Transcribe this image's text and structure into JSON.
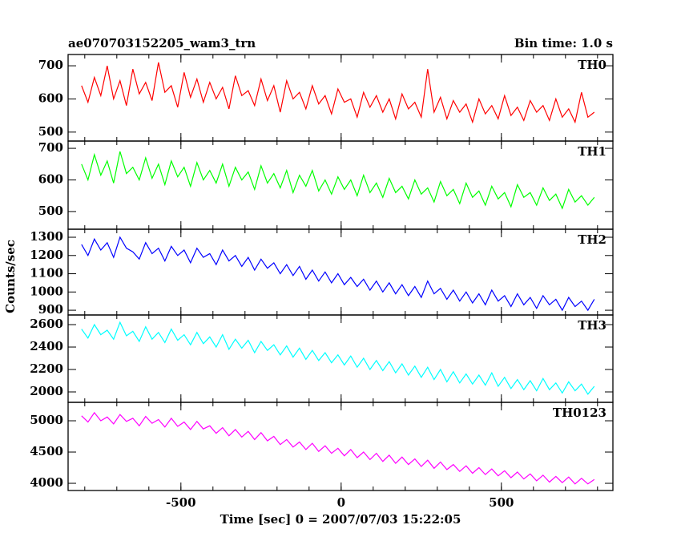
{
  "chart_data": {
    "type": "line",
    "title": "ae070703152205_wam3_trn",
    "subtitle": "Bin time: 1.0 s",
    "y_label": "Counts/sec",
    "x_label": "Time [sec] 0 = 2007/07/03 15:22:05",
    "xlim": [
      -852,
      848
    ],
    "xticks": [
      -500,
      0,
      500
    ],
    "xminorticks": [
      -800,
      -700,
      -600,
      -500,
      -400,
      -300,
      -200,
      -100,
      0,
      100,
      200,
      300,
      400,
      500,
      600,
      700,
      800
    ],
    "x": [
      -810,
      -790,
      -770,
      -750,
      -730,
      -710,
      -690,
      -670,
      -650,
      -630,
      -610,
      -590,
      -570,
      -550,
      -530,
      -510,
      -490,
      -470,
      -450,
      -430,
      -410,
      -390,
      -370,
      -350,
      -330,
      -310,
      -290,
      -270,
      -250,
      -230,
      -210,
      -190,
      -170,
      -150,
      -130,
      -110,
      -90,
      -70,
      -50,
      -30,
      -10,
      10,
      30,
      50,
      70,
      90,
      110,
      130,
      150,
      170,
      190,
      210,
      230,
      250,
      270,
      290,
      310,
      330,
      350,
      370,
      390,
      410,
      430,
      450,
      470,
      490,
      510,
      530,
      550,
      570,
      590,
      610,
      630,
      650,
      670,
      690,
      710,
      730,
      750,
      770,
      790
    ],
    "series": [
      {
        "name": "TH0",
        "color": "#ff0000",
        "ylim": [
          473,
          734
        ],
        "yticks": [
          500,
          600,
          700
        ],
        "values": [
          640,
          590,
          665,
          610,
          700,
          600,
          655,
          580,
          690,
          615,
          650,
          595,
          710,
          620,
          640,
          575,
          680,
          605,
          660,
          590,
          650,
          600,
          635,
          570,
          670,
          610,
          625,
          580,
          660,
          595,
          640,
          560,
          655,
          600,
          620,
          570,
          640,
          585,
          610,
          555,
          630,
          590,
          600,
          545,
          620,
          575,
          610,
          560,
          600,
          540,
          615,
          570,
          590,
          545,
          690,
          560,
          605,
          540,
          595,
          560,
          585,
          530,
          600,
          555,
          580,
          540,
          610,
          550,
          575,
          535,
          595,
          560,
          580,
          535,
          600,
          545,
          570,
          530,
          620,
          545,
          560
        ]
      },
      {
        "name": "TH1",
        "color": "#00ff00",
        "ylim": [
          444,
          723
        ],
        "yticks": [
          500,
          600,
          700
        ],
        "values": [
          650,
          600,
          680,
          615,
          660,
          590,
          690,
          620,
          640,
          600,
          670,
          605,
          650,
          585,
          660,
          610,
          640,
          580,
          655,
          600,
          630,
          590,
          650,
          580,
          640,
          600,
          625,
          570,
          645,
          590,
          620,
          575,
          630,
          560,
          615,
          580,
          630,
          565,
          600,
          555,
          610,
          570,
          600,
          550,
          615,
          560,
          590,
          545,
          605,
          560,
          580,
          540,
          600,
          555,
          575,
          530,
          595,
          550,
          570,
          525,
          590,
          545,
          565,
          520,
          580,
          540,
          560,
          515,
          585,
          545,
          560,
          520,
          575,
          535,
          555,
          510,
          570,
          530,
          550,
          520,
          545
        ]
      },
      {
        "name": "TH2",
        "color": "#0000ff",
        "ylim": [
          874,
          1344
        ],
        "yticks": [
          900,
          1000,
          1100,
          1200,
          1300
        ],
        "values": [
          1260,
          1200,
          1290,
          1230,
          1270,
          1190,
          1300,
          1240,
          1220,
          1180,
          1270,
          1210,
          1240,
          1170,
          1250,
          1200,
          1230,
          1160,
          1240,
          1190,
          1210,
          1150,
          1230,
          1170,
          1200,
          1140,
          1190,
          1120,
          1180,
          1130,
          1160,
          1100,
          1150,
          1090,
          1140,
          1070,
          1120,
          1060,
          1110,
          1050,
          1100,
          1040,
          1080,
          1030,
          1070,
          1010,
          1060,
          1000,
          1050,
          990,
          1040,
          980,
          1030,
          970,
          1060,
          990,
          1020,
          960,
          1010,
          950,
          1000,
          940,
          990,
          930,
          1010,
          950,
          980,
          920,
          990,
          930,
          970,
          910,
          980,
          930,
          960,
          900,
          970,
          920,
          950,
          900,
          960
        ]
      },
      {
        "name": "TH3",
        "color": "#00ffff",
        "ylim": [
          1907,
          2686
        ],
        "yticks": [
          2000,
          2200,
          2400,
          2600
        ],
        "values": [
          2560,
          2480,
          2600,
          2510,
          2550,
          2470,
          2620,
          2500,
          2540,
          2450,
          2580,
          2470,
          2530,
          2440,
          2560,
          2460,
          2510,
          2420,
          2530,
          2430,
          2490,
          2400,
          2510,
          2380,
          2470,
          2390,
          2460,
          2350,
          2450,
          2370,
          2420,
          2330,
          2410,
          2310,
          2390,
          2290,
          2370,
          2280,
          2350,
          2260,
          2330,
          2240,
          2320,
          2220,
          2300,
          2200,
          2280,
          2190,
          2270,
          2170,
          2250,
          2150,
          2230,
          2130,
          2220,
          2110,
          2200,
          2090,
          2180,
          2080,
          2160,
          2070,
          2150,
          2060,
          2170,
          2050,
          2130,
          2030,
          2110,
          2020,
          2100,
          2010,
          2120,
          2020,
          2080,
          1990,
          2090,
          2010,
          2070,
          1980,
          2050
        ]
      },
      {
        "name": "TH0123",
        "color": "#ff00ff",
        "ylim": [
          3885,
          5295
        ],
        "yticks": [
          4000,
          4500,
          5000
        ],
        "values": [
          5080,
          4980,
          5130,
          5000,
          5060,
          4950,
          5100,
          4990,
          5040,
          4920,
          5070,
          4960,
          5020,
          4900,
          5040,
          4910,
          4980,
          4860,
          4990,
          4870,
          4920,
          4800,
          4890,
          4760,
          4860,
          4740,
          4830,
          4700,
          4810,
          4680,
          4750,
          4620,
          4700,
          4580,
          4660,
          4540,
          4640,
          4510,
          4600,
          4480,
          4560,
          4440,
          4540,
          4410,
          4500,
          4380,
          4480,
          4350,
          4450,
          4320,
          4420,
          4300,
          4390,
          4270,
          4370,
          4240,
          4340,
          4220,
          4300,
          4190,
          4280,
          4160,
          4250,
          4140,
          4230,
          4120,
          4200,
          4090,
          4180,
          4070,
          4150,
          4040,
          4130,
          4020,
          4110,
          4010,
          4100,
          3990,
          4080,
          3990,
          4060
        ]
      }
    ]
  }
}
